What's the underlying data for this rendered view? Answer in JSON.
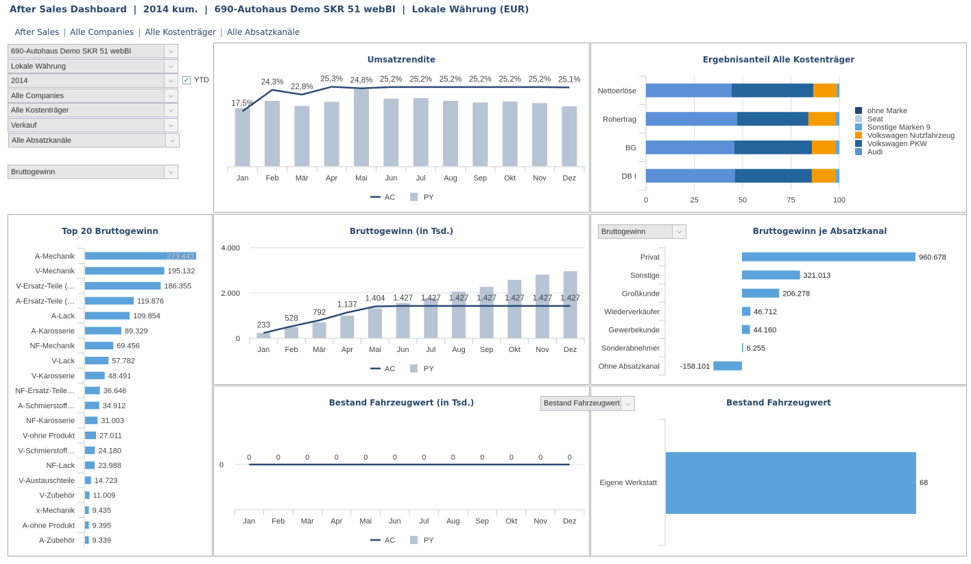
{
  "header": {
    "title_parts": [
      "After Sales Dashboard",
      "2014 kum.",
      "690-Autohaus Demo SKR 51 webBI",
      "Lokale Währung (EUR)"
    ],
    "title": "After Sales Dashboard  |  2014 kum.  |  690-Autohaus Demo SKR 51 webBI  |  Lokale Währung (EUR)",
    "breadcrumbs": [
      "After Sales",
      "Alle Companies",
      "Alle Kostenträger",
      "Alle Absatzkanäle"
    ]
  },
  "filters": {
    "company": "690-Autohaus Demo SKR 51 webBI",
    "currency": "Lokale Währung",
    "year": "2014",
    "companies": "Alle Companies",
    "cost_units": "Alle Kostenträger",
    "area": "Verkauf",
    "channels": "Alle Absatzkanäle",
    "measure": "Bruttogewinn",
    "ytd_label": "YTD",
    "ytd_checked": true,
    "check_glyph": "✓",
    "chevron": "⌵"
  },
  "colors": {
    "title": "#2b4a6f",
    "ac_line": "#2b4a75",
    "py_bar": "#b7c4d3",
    "bar_blue": "#5ba3da",
    "audi": "#5b8fd6",
    "vw_pkw": "#23649c",
    "vw_nfz": "#f59a00",
    "sonstige": "#5ea5d8",
    "seat": "#b9cfe6",
    "ohne_marke": "#24477a"
  },
  "chart_data": [
    {
      "id": "umsatzrendite",
      "type": "bar",
      "title": "Umsatzrendite",
      "categories": [
        "Jan",
        "Feb",
        "Mär",
        "Apr",
        "Mai",
        "Jun",
        "Jul",
        "Aug",
        "Sep",
        "Okt",
        "Nov",
        "Dez"
      ],
      "series": [
        {
          "name": "AC",
          "kind": "line",
          "values": [
            17.5,
            24.3,
            22.8,
            25.3,
            24.8,
            25.2,
            25.2,
            25.2,
            25.2,
            25.2,
            25.2,
            25.1
          ],
          "labels": [
            "17,5%",
            "24,3%",
            "22,8%",
            "25,3%",
            "24,8%",
            "25,2%",
            "25,2%",
            "25,2%",
            "25,2%",
            "25,2%",
            "25,2%",
            "25,1%"
          ]
        },
        {
          "name": "PY",
          "kind": "bar",
          "values": [
            18.5,
            20.8,
            19.2,
            20.5,
            24.5,
            21.5,
            21.7,
            20.8,
            20.3,
            20.6,
            20.1,
            19.1
          ]
        }
      ],
      "ylim": [
        0,
        30
      ],
      "legend": [
        "AC",
        "PY"
      ],
      "legend_position": "bottom"
    },
    {
      "id": "ergebnisanteil",
      "type": "bar",
      "orientation": "horizontal-stacked",
      "title": "Ergebnisanteil Alle Kostenträger",
      "categories": [
        "Nettoerlöse",
        "Rohertrag",
        "BG",
        "DB I"
      ],
      "series": [
        {
          "name": "Audi",
          "values": [
            44.3,
            47.2,
            45.7,
            46.1
          ]
        },
        {
          "name": "Volkswagen PKW",
          "values": [
            42.2,
            36.8,
            40.1,
            39.7
          ]
        },
        {
          "name": "Volkswagen Nutzfahrzeug",
          "values": [
            12.1,
            14.2,
            12.4,
            12.4
          ]
        },
        {
          "name": "Sonstige Marken 9",
          "values": [
            1.4,
            1.8,
            1.8,
            1.8
          ]
        },
        {
          "name": "Seat",
          "values": [
            0,
            0,
            0,
            0
          ]
        },
        {
          "name": "ohne Marke",
          "values": [
            0,
            0,
            0,
            0
          ]
        }
      ],
      "legend": [
        "ohne Marke",
        "Seat",
        "Sonstige Marken 9",
        "Volkswagen Nutzfahrzeug",
        "Volkswagen PKW",
        "Audi"
      ],
      "legend_position": "right",
      "xticks": [
        "0",
        "25",
        "50",
        "75",
        "100"
      ],
      "xlim": [
        0,
        100
      ],
      "grid": true
    },
    {
      "id": "top20",
      "type": "bar",
      "orientation": "horizontal",
      "title": "Top 20 Bruttogewinn",
      "categories": [
        "A-Mechanik",
        "V-Mechanik",
        "V-Ersatz-Teile (…",
        "A-Ersatz-Teile (…",
        "A-Lack",
        "A-Karosserie",
        "NF-Mechanik",
        "V-Lack",
        "V-Karosserie",
        "NF-Ersatz-Teile…",
        "A-Schmierstoff…",
        "NF-Karosserie",
        "V-ohne Produkt",
        "V-Schmierstoff…",
        "NF-Lack",
        "V-Austauschteile",
        "V-Zubehör",
        "x-Mechanik",
        "A-ohne Produkt",
        "A-Zubehör"
      ],
      "values": [
        273443,
        195132,
        186355,
        119876,
        109854,
        89329,
        69456,
        57782,
        48491,
        36646,
        34912,
        31003,
        27011,
        24180,
        23988,
        14723,
        11009,
        9435,
        9395,
        9339
      ],
      "labels": [
        "273.443",
        "195.132",
        "186.355",
        "119.876",
        "109.854",
        "89.329",
        "69.456",
        "57.782",
        "48.491",
        "36.646",
        "34.912",
        "31.003",
        "27.011",
        "24.180",
        "23.988",
        "14.723",
        "11.009",
        "9.435",
        "9.395",
        "9.339"
      ]
    },
    {
      "id": "bruttogewinn",
      "type": "bar",
      "title": "Bruttogewinn (in Tsd.)",
      "categories": [
        "Jan",
        "Feb",
        "Mär",
        "Apr",
        "Mai",
        "Jun",
        "Jul",
        "Aug",
        "Sep",
        "Okt",
        "Nov",
        "Dez"
      ],
      "series": [
        {
          "name": "AC",
          "kind": "line",
          "values": [
            233,
            528,
            792,
            1137,
            1404,
            1427,
            1427,
            1427,
            1427,
            1427,
            1427,
            1427
          ],
          "labels": [
            "233",
            "528",
            "792",
            "1.137",
            "1.404",
            "1.427",
            "1.427",
            "1.427",
            "1.427",
            "1.427",
            "1.427",
            "1.427"
          ]
        },
        {
          "name": "PY",
          "kind": "bar",
          "values": [
            240,
            500,
            700,
            1000,
            1320,
            1560,
            1770,
            2060,
            2270,
            2580,
            2810,
            2960
          ]
        }
      ],
      "ylim": [
        0,
        4000
      ],
      "yticks": [
        "0",
        "2.000",
        "4.000"
      ],
      "yticks_values": [
        0,
        2000,
        4000
      ],
      "grid": true,
      "legend": [
        "AC",
        "PY"
      ],
      "legend_position": "bottom"
    },
    {
      "id": "absatzkanal",
      "type": "bar",
      "orientation": "horizontal",
      "title": "Bruttogewinn je Absatzkanal",
      "dropdown": "Bruttogewinn",
      "categories": [
        "Privat",
        "Sonstige",
        "Großkunde",
        "Wiederverkäufer",
        "Gewerbekunde",
        "Sonderabnehmer",
        "Ohne Absatzkanal"
      ],
      "values": [
        960678,
        321013,
        206278,
        46712,
        44160,
        6255,
        -158101
      ],
      "labels": [
        "960.678",
        "321.013",
        "206.278",
        "46.712",
        "44.160",
        "6.255",
        "-158.101"
      ]
    },
    {
      "id": "bestand_monthly",
      "type": "line",
      "title": "Bestand Fahrzeugwert (in Tsd.)",
      "categories": [
        "Jan",
        "Feb",
        "Mär",
        "Apr",
        "Mai",
        "Jun",
        "Jul",
        "Aug",
        "Sep",
        "Okt",
        "Nov",
        "Dez"
      ],
      "series": [
        {
          "name": "AC",
          "kind": "line",
          "values": [
            0,
            0,
            0,
            0,
            0,
            0,
            0,
            0,
            0,
            0,
            0,
            0
          ],
          "labels": [
            "0",
            "0",
            "0",
            "0",
            "0",
            "0",
            "0",
            "0",
            "0",
            "0",
            "0",
            "0"
          ]
        },
        {
          "name": "PY",
          "kind": "bar",
          "values": [
            0,
            0,
            0,
            0,
            0,
            0,
            0,
            0,
            0,
            0,
            0,
            0
          ]
        }
      ],
      "yticks": [
        "0"
      ],
      "legend": [
        "AC",
        "PY"
      ],
      "legend_position": "bottom"
    },
    {
      "id": "bestand",
      "type": "bar",
      "orientation": "horizontal",
      "title": "Bestand Fahrzeugwert",
      "dropdown": "Bestand Fahrzeugwert",
      "categories": [
        "Eigene Werkstatt"
      ],
      "values": [
        68
      ],
      "labels": [
        "68"
      ]
    }
  ]
}
